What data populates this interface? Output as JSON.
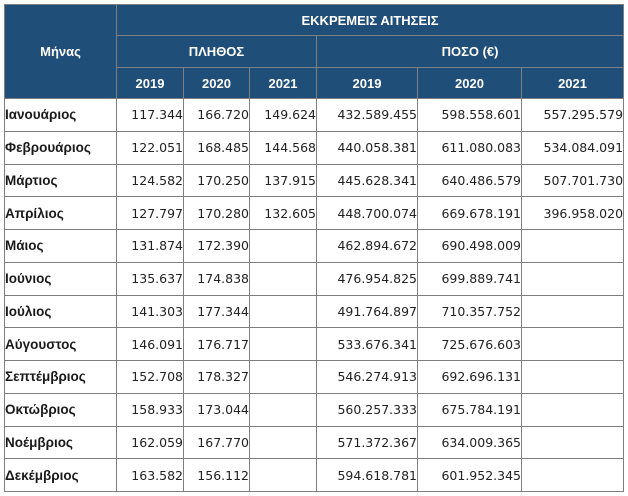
{
  "chart_data": {
    "type": "table",
    "title": "ΕΚΚΡΕΜΕΙΣ ΑΙΤΗΣΕΙΣ",
    "month_header": "Μήνας",
    "groups": [
      {
        "name": "ΠΛΗΘΟΣ",
        "years": [
          "2019",
          "2020",
          "2021"
        ]
      },
      {
        "name": "ΠΟΣΟ (€)",
        "years": [
          "2019",
          "2020",
          "2021"
        ]
      }
    ],
    "rows": [
      {
        "month": "Ιανουάριος",
        "plithos": [
          "117.344",
          "166.720",
          "149.624"
        ],
        "poso": [
          "432.589.455",
          "598.558.601",
          "557.295.579"
        ]
      },
      {
        "month": "Φεβρουάριος",
        "plithos": [
          "122.051",
          "168.485",
          "144.568"
        ],
        "poso": [
          "440.058.381",
          "611.080.083",
          "534.084.091"
        ]
      },
      {
        "month": "Μάρτιος",
        "plithos": [
          "124.582",
          "170.250",
          "137.915"
        ],
        "poso": [
          "445.628.341",
          "640.486.579",
          "507.701.730"
        ]
      },
      {
        "month": "Απρίλιος",
        "plithos": [
          "127.797",
          "170.280",
          "132.605"
        ],
        "poso": [
          "448.700.074",
          "669.678.191",
          "396.958.020"
        ]
      },
      {
        "month": "Μάιος",
        "plithos": [
          "131.874",
          "172.390",
          ""
        ],
        "poso": [
          "462.894.672",
          "690.498.009",
          ""
        ]
      },
      {
        "month": "Ιούνιος",
        "plithos": [
          "135.637",
          "174.838",
          ""
        ],
        "poso": [
          "476.954.825",
          "699.889.741",
          ""
        ]
      },
      {
        "month": "Ιούλιος",
        "plithos": [
          "141.303",
          "177.344",
          ""
        ],
        "poso": [
          "491.764.897",
          "710.357.752",
          ""
        ]
      },
      {
        "month": "Αύγουστος",
        "plithos": [
          "146.091",
          "176.717",
          ""
        ],
        "poso": [
          "533.676.341",
          "725.676.603",
          ""
        ]
      },
      {
        "month": "Σεπτέμβριος",
        "plithos": [
          "152.708",
          "178.327",
          ""
        ],
        "poso": [
          "546.274.913",
          "692.696.131",
          ""
        ]
      },
      {
        "month": "Οκτώβριος",
        "plithos": [
          "158.933",
          "173.044",
          ""
        ],
        "poso": [
          "560.257.333",
          "675.784.191",
          ""
        ]
      },
      {
        "month": "Νοέμβριος",
        "plithos": [
          "162.059",
          "167.770",
          ""
        ],
        "poso": [
          "571.372.367",
          "634.009.365",
          ""
        ]
      },
      {
        "month": "Δεκέμβριος",
        "plithos": [
          "163.582",
          "156.112",
          ""
        ],
        "poso": [
          "594.618.781",
          "601.952.345",
          ""
        ]
      }
    ]
  }
}
